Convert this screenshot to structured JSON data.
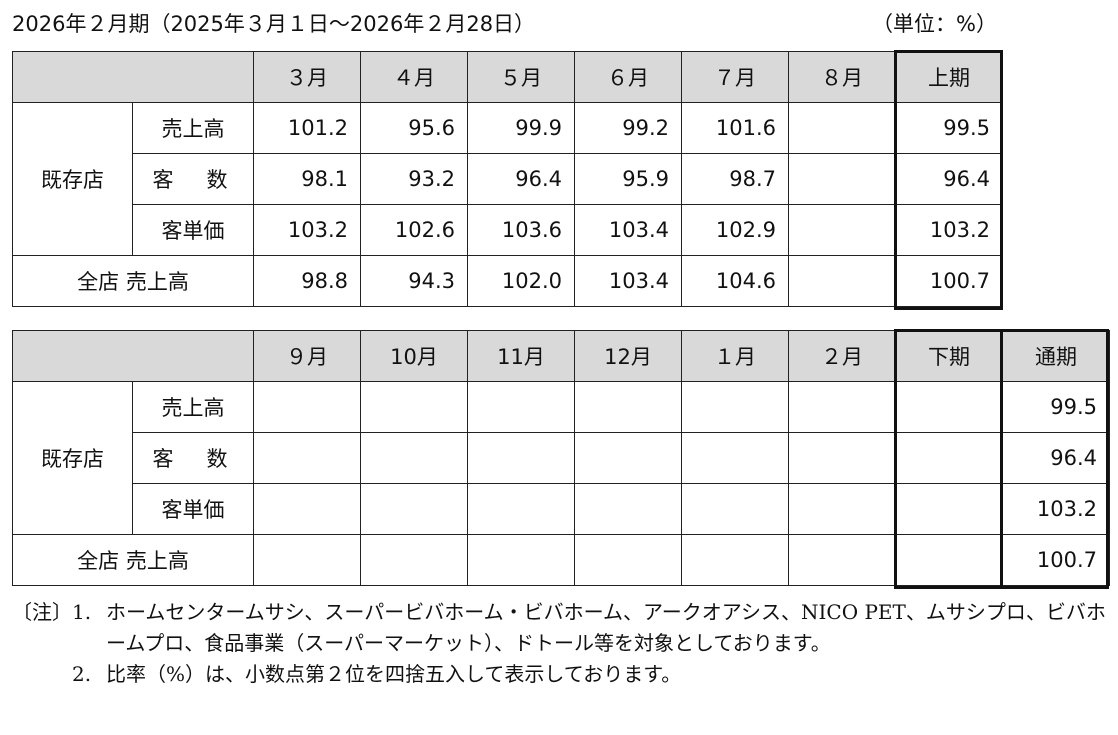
{
  "header": {
    "period": "2026年２月期（2025年３月１日～2026年２月28日）",
    "unit": "（単位：%）"
  },
  "first_half": {
    "columns": [
      "３月",
      "４月",
      "５月",
      "６月",
      "７月",
      "８月",
      "上期"
    ],
    "group_label": "既存店",
    "rows": [
      {
        "label": "売上高",
        "values": [
          "101.2",
          "95.6",
          "99.9",
          "99.2",
          "101.6",
          "",
          "99.5"
        ]
      },
      {
        "label": "客　数",
        "values": [
          "98.1",
          "93.2",
          "96.4",
          "95.9",
          "98.7",
          "",
          "96.4"
        ]
      },
      {
        "label": "客単価",
        "values": [
          "103.2",
          "102.6",
          "103.6",
          "103.4",
          "102.9",
          "",
          "103.2"
        ]
      }
    ],
    "total_row": {
      "label": "全店  売上高",
      "values": [
        "98.8",
        "94.3",
        "102.0",
        "103.4",
        "104.6",
        "",
        "100.7"
      ]
    }
  },
  "second_half": {
    "columns": [
      "９月",
      "10月",
      "11月",
      "12月",
      "１月",
      "２月",
      "下期",
      "通期"
    ],
    "group_label": "既存店",
    "rows": [
      {
        "label": "売上高",
        "values": [
          "",
          "",
          "",
          "",
          "",
          "",
          "",
          "99.5"
        ]
      },
      {
        "label": "客　数",
        "values": [
          "",
          "",
          "",
          "",
          "",
          "",
          "",
          "96.4"
        ]
      },
      {
        "label": "客単価",
        "values": [
          "",
          "",
          "",
          "",
          "",
          "",
          "",
          "103.2"
        ]
      }
    ],
    "total_row": {
      "label": "全店  売上高",
      "values": [
        "",
        "",
        "",
        "",
        "",
        "",
        "",
        "100.7"
      ]
    }
  },
  "notes": {
    "prefix": "〔注〕",
    "items": [
      {
        "num": "1.",
        "text": "ホームセンタームサシ、スーパービバホーム・ビバホーム、アークオアシス、NICO PET、ムサシプロ、ビバホームプロ、食品事業（スーパーマーケット）、ドトール等を対象としております。"
      },
      {
        "num": "2.",
        "text": "比率（%）は、小数点第２位を四捨五入して表示しております。"
      }
    ]
  }
}
